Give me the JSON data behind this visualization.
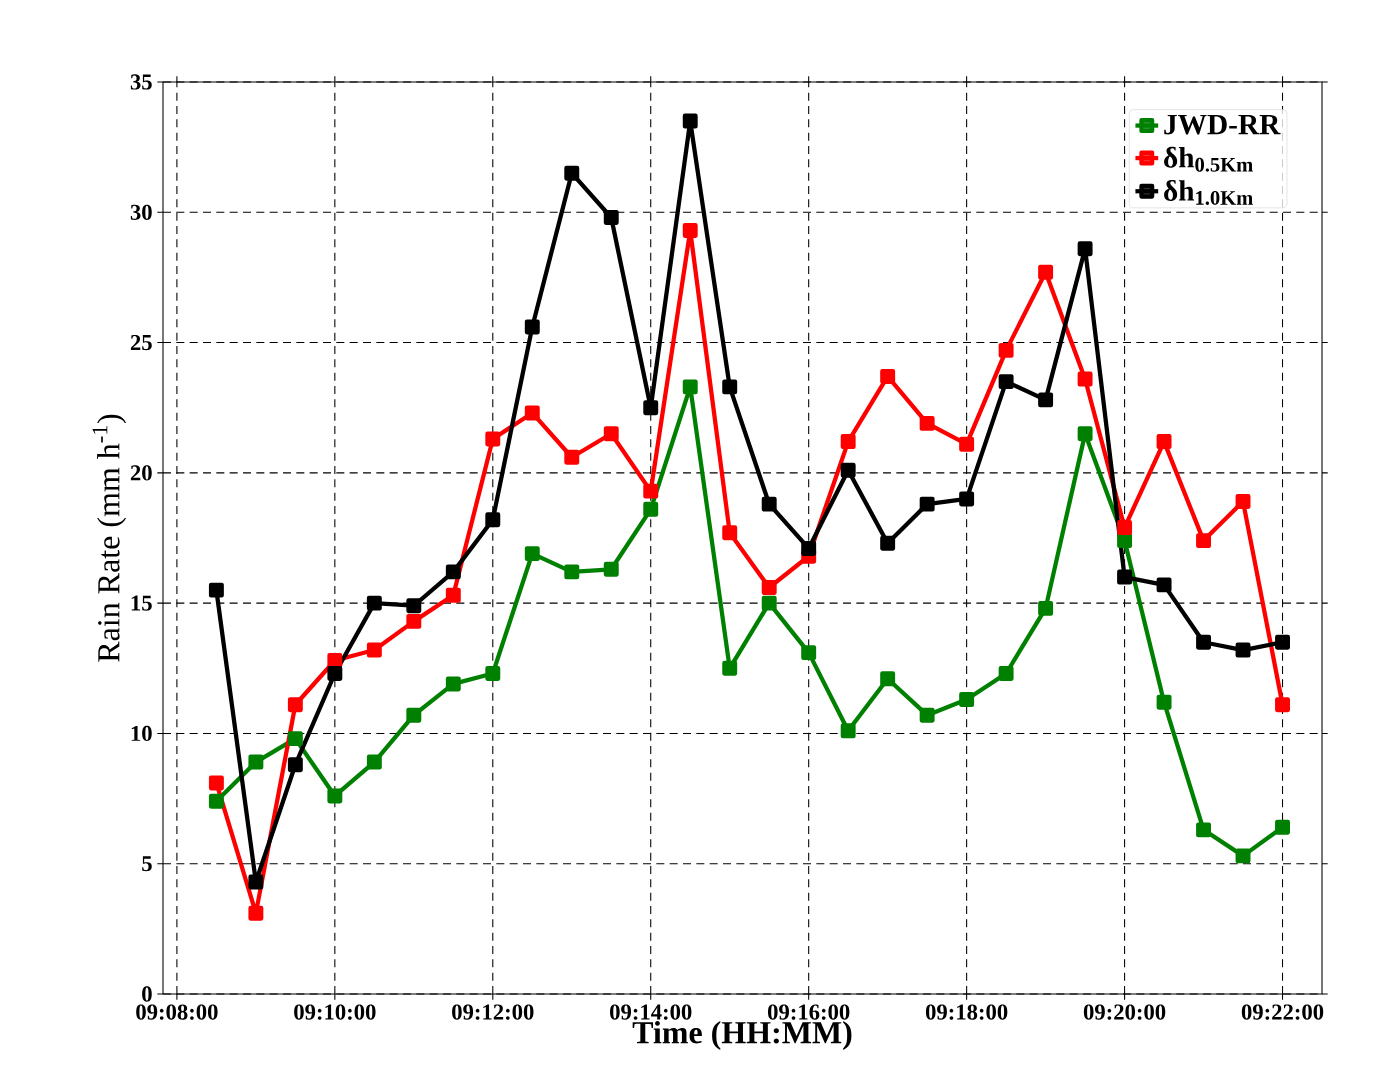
{
  "chart_data": {
    "type": "line",
    "xlabel": "Time (HH:MM)",
    "ylabel": "Rain Rate (mm h$^{-1}$)",
    "x": [
      9.141667,
      9.15,
      9.158333,
      9.166667,
      9.175,
      9.183333,
      9.191667,
      9.2,
      9.208333,
      9.216667,
      9.225,
      9.233333,
      9.241667,
      9.25,
      9.258333,
      9.266667,
      9.275,
      9.283333,
      9.291667,
      9.3,
      9.308333,
      9.316667,
      9.325,
      9.333333,
      9.341667,
      9.35,
      9.358333,
      9.366667
    ],
    "series": [
      {
        "name": "JWD-RR",
        "color": "#008000",
        "values": [
          7.4,
          8.9,
          9.8,
          7.6,
          8.9,
          10.7,
          11.9,
          12.3,
          16.9,
          16.2,
          16.3,
          18.6,
          23.3,
          12.5,
          15.0,
          13.1,
          10.1,
          12.1,
          10.7,
          11.3,
          12.3,
          14.8,
          21.5,
          17.4,
          11.2,
          6.3,
          5.3,
          6.4
        ]
      },
      {
        "name": "δh$_{0.5Km}$",
        "color": "#ff0000",
        "values": [
          8.1,
          3.1,
          11.1,
          12.8,
          13.2,
          14.3,
          15.3,
          21.3,
          22.3,
          20.6,
          21.5,
          19.3,
          29.3,
          17.7,
          15.6,
          16.8,
          21.2,
          23.7,
          21.9,
          21.1,
          24.7,
          27.7,
          23.6,
          17.9,
          21.2,
          17.4,
          18.9,
          11.1
        ]
      },
      {
        "name": "δh$_{1.0Km}$",
        "color": "#000000",
        "values": [
          15.5,
          4.3,
          8.8,
          12.3,
          15.0,
          14.9,
          16.2,
          18.2,
          25.6,
          31.5,
          29.8,
          22.5,
          33.5,
          23.3,
          18.8,
          17.1,
          20.1,
          17.3,
          18.8,
          19.0,
          23.5,
          22.8,
          28.6,
          16.0,
          15.7,
          13.5,
          13.2,
          13.5
        ]
      }
    ],
    "xlim": [
      9.1304,
      9.375
    ],
    "ylim": [
      0,
      35
    ],
    "xticks": [
      {
        "value": 9.133333,
        "label": "09:08:00"
      },
      {
        "value": 9.166667,
        "label": "09:10:00"
      },
      {
        "value": 9.2,
        "label": "09:12:00"
      },
      {
        "value": 9.233333,
        "label": "09:14:00"
      },
      {
        "value": 9.266667,
        "label": "09:16:00"
      },
      {
        "value": 9.3,
        "label": "09:18:00"
      },
      {
        "value": 9.333333,
        "label": "09:20:00"
      },
      {
        "value": 9.366667,
        "label": "09:22:00"
      }
    ],
    "yticks": [
      0,
      5,
      10,
      15,
      20,
      25,
      30,
      35
    ],
    "grid": true,
    "legend": "top right",
    "marker": "square",
    "line_style": "solid"
  }
}
